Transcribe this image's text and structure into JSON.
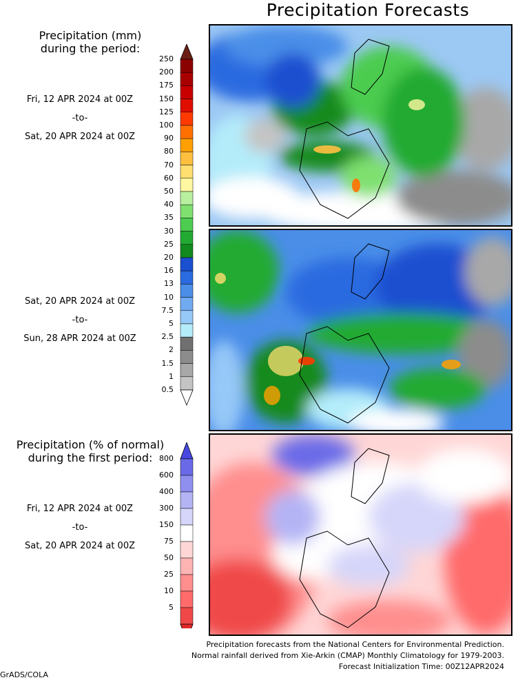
{
  "title": "Precipitation Forecasts",
  "legend_mm": {
    "heading_line1": "Precipitation (mm)",
    "heading_line2": "during the period:",
    "ticks": [
      "250",
      "200",
      "175",
      "150",
      "125",
      "100",
      "90",
      "80",
      "70",
      "60",
      "50",
      "40",
      "35",
      "30",
      "25",
      "20",
      "16",
      "13",
      "10",
      "7.5",
      "5",
      "2.5",
      "2",
      "1.5",
      "1",
      "0.5"
    ],
    "colors": [
      "#6b1f14",
      "#8b0000",
      "#a80000",
      "#c80000",
      "#e00e00",
      "#ff3a00",
      "#ff7000",
      "#ffa000",
      "#ffc040",
      "#ffdf70",
      "#fff8a0",
      "#b8f0a0",
      "#7fe070",
      "#4ccc50",
      "#22aa32",
      "#138a1e",
      "#1a4fd0",
      "#2b6be0",
      "#4a8ee8",
      "#70aaf0",
      "#96c8f8",
      "#b4ecfa",
      "#707070",
      "#8c8c8c",
      "#a8a8a8",
      "#c4c4c4"
    ]
  },
  "legend_pct": {
    "heading_line1": "Precipitation (% of normal)",
    "heading_line2": "during the first period:",
    "ticks": [
      "800",
      "600",
      "400",
      "300",
      "150",
      "75",
      "50",
      "25",
      "10",
      "5"
    ],
    "colors": [
      "#4848e0",
      "#6a6ae8",
      "#8f8ff0",
      "#b4b4f5",
      "#d6d6fa",
      "#ffffff",
      "#ffd6d6",
      "#ffb4b4",
      "#ff8e8e",
      "#ff6a6a",
      "#f04848"
    ]
  },
  "periods": [
    {
      "from": "Fri, 12 APR 2024 at 00Z",
      "sep": "-to-",
      "to": "Sat, 20 APR 2024 at 00Z"
    },
    {
      "from": "Sat, 20 APR 2024 at 00Z",
      "sep": "-to-",
      "to": "Sun, 28 APR 2024 at 00Z"
    },
    {
      "from": "Fri, 12 APR 2024 at 00Z",
      "sep": "-to-",
      "to": "Sat, 20 APR 2024 at 00Z"
    }
  ],
  "footer": {
    "line1": "Precipitation forecasts from the National Centers for Environmental Prediction.",
    "line2": "Normal rainfall derived from Xie-Arkin (CMAP) Monthly Climatology for 1979-2003.",
    "line3": "Forecast Initialization Time: 00Z12APR2024"
  },
  "credit": "GrADS/COLA"
}
